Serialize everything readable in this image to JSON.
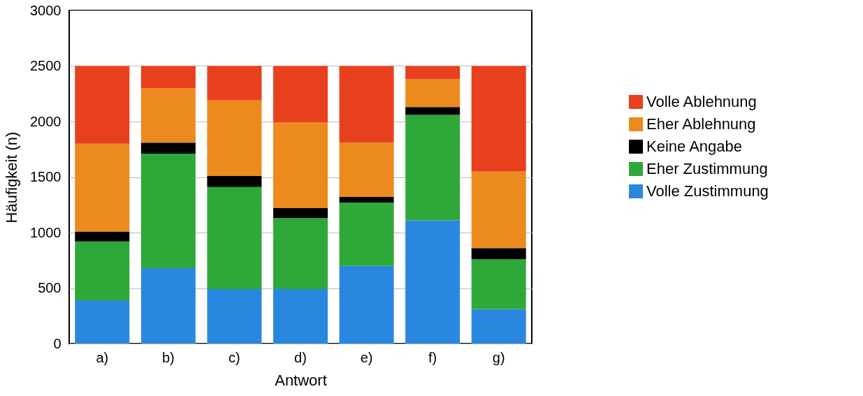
{
  "chart_data": {
    "type": "bar",
    "stacked": true,
    "xlabel": "Antwort",
    "ylabel": "Häufigkeit (n)",
    "categories": [
      "a)",
      "b)",
      "c)",
      "d)",
      "e)",
      "f)",
      "g)"
    ],
    "series": [
      {
        "name": "Volle Zustimmung",
        "color": "#2a87e0",
        "values": [
          390,
          680,
          490,
          490,
          700,
          1110,
          310
        ]
      },
      {
        "name": "Eher Zustimmung",
        "color": "#2fa83a",
        "values": [
          530,
          1030,
          920,
          640,
          570,
          950,
          450
        ]
      },
      {
        "name": "Keine Angabe",
        "color": "#000000",
        "values": [
          90,
          100,
          100,
          90,
          50,
          70,
          100
        ]
      },
      {
        "name": "Eher Ablehnung",
        "color": "#ec8a1d",
        "values": [
          790,
          490,
          680,
          770,
          490,
          250,
          690
        ]
      },
      {
        "name": "Volle Ablehnung",
        "color": "#e8401c",
        "values": [
          700,
          200,
          310,
          510,
          690,
          120,
          950
        ]
      }
    ],
    "ylim": [
      0,
      3000
    ],
    "yticks": [
      0,
      500,
      1000,
      1500,
      2000,
      2500,
      3000
    ],
    "grid": "y",
    "legend": "right"
  }
}
